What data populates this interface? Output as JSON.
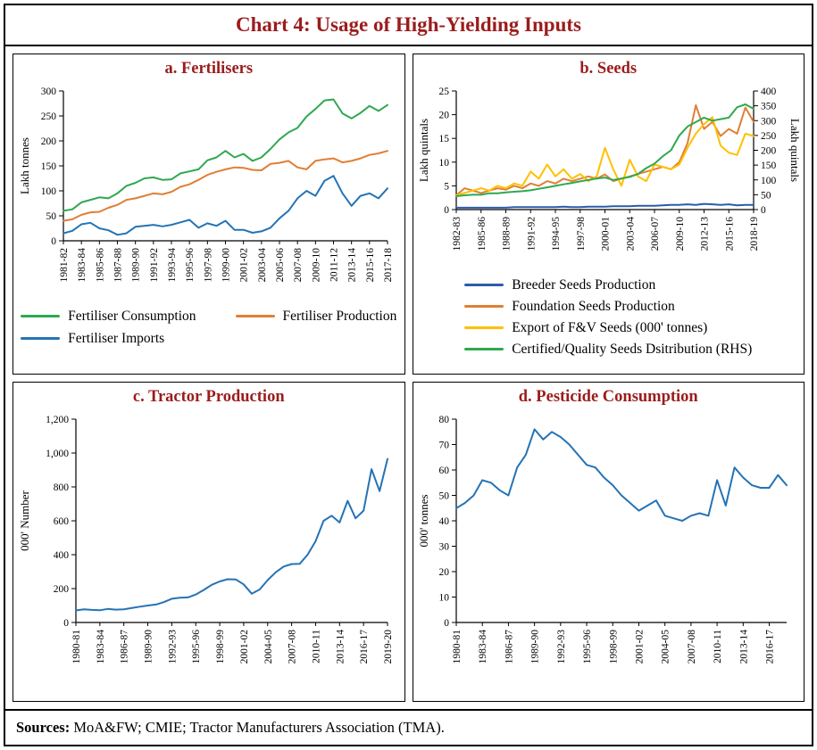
{
  "figure": {
    "title": "Chart 4: Usage of High-Yielding Inputs",
    "title_color": "#9b1c1c",
    "sources_label": "Sources:",
    "sources_text": " MoA&FW; CMIE; Tractor Manufacturers Association (TMA)."
  },
  "colors": {
    "green": "#2fa84f",
    "orange": "#e07f35",
    "blue": "#2473b5",
    "dark_blue": "#2a5caa",
    "yellow": "#ffc000",
    "title_maroon": "#9b1c1c"
  },
  "chart_data": [
    {
      "type": "line",
      "id": "fertilisers",
      "title": "a. Fertilisers",
      "ylabel": "Lakh tonnes",
      "ylim": [
        0,
        300
      ],
      "yticks": [
        0,
        50,
        100,
        150,
        200,
        250,
        300
      ],
      "ytick_labels": [
        "0",
        "50",
        "100",
        "150",
        "200",
        "250",
        "300"
      ],
      "xtick_step": 2,
      "xtick_labels": [
        "1981-82",
        "1983-84",
        "1985-86",
        "1987-88",
        "1989-90",
        "1991-92",
        "1993-94",
        "1995-96",
        "1997-98",
        "1999-00",
        "2001-02",
        "2003-04",
        "2005-06",
        "2007-08",
        "2009-10",
        "2011-12",
        "2013-14",
        "2015-16",
        "2017-18"
      ],
      "grid": false,
      "legend_position": "bottom",
      "series": [
        {
          "name": "Fertiliser Consumption",
          "color": "#2fa84f",
          "axis": "left",
          "values": [
            60,
            63,
            77,
            82,
            87,
            85,
            95,
            110,
            116,
            125,
            127,
            122,
            123,
            135,
            139,
            143,
            161,
            167,
            180,
            167,
            174,
            160,
            167,
            184,
            203,
            217,
            226,
            249,
            264,
            281,
            283,
            255,
            245,
            256,
            270,
            260,
            272
          ]
        },
        {
          "name": "Fertiliser Production",
          "color": "#e07f35",
          "axis": "left",
          "values": [
            40,
            43,
            52,
            57,
            58,
            66,
            72,
            82,
            85,
            90,
            95,
            93,
            98,
            108,
            113,
            122,
            132,
            138,
            143,
            147,
            146,
            142,
            141,
            154,
            156,
            160,
            147,
            143,
            160,
            163,
            165,
            157,
            160,
            165,
            172,
            175,
            180
          ]
        },
        {
          "name": "Fertiliser Imports",
          "color": "#2473b5",
          "axis": "left",
          "values": [
            15,
            20,
            33,
            36,
            25,
            21,
            12,
            15,
            28,
            30,
            32,
            29,
            32,
            37,
            42,
            26,
            35,
            30,
            40,
            22,
            22,
            16,
            19,
            26,
            45,
            60,
            85,
            100,
            90,
            120,
            130,
            95,
            70,
            90,
            95,
            85,
            105
          ]
        }
      ]
    },
    {
      "type": "line",
      "id": "seeds",
      "title": "b. Seeds",
      "ylabel": "Lakh quintals",
      "ylim": [
        0,
        25
      ],
      "yticks": [
        0,
        5,
        10,
        15,
        20,
        25
      ],
      "ytick_labels": [
        "0",
        "5",
        "10",
        "15",
        "20",
        "25"
      ],
      "right_axis": {
        "ylabel": "Lakh quintals",
        "ylim": [
          0,
          400
        ],
        "yticks": [
          0,
          50,
          100,
          150,
          200,
          250,
          300,
          350,
          400
        ],
        "ytick_labels": [
          "0",
          "50",
          "100",
          "150",
          "200",
          "250",
          "300",
          "350",
          "400"
        ]
      },
      "xtick_step": 3,
      "xtick_labels": [
        "1982-83",
        "1985-86",
        "1988-89",
        "1991-92",
        "1994-95",
        "1997-98",
        "2000-01",
        "2003-04",
        "2006-07",
        "2009-10",
        "2012-13",
        "2015-16",
        "2018-19"
      ],
      "grid": false,
      "legend_position": "bottom",
      "series": [
        {
          "name": "Breeder Seeds Production",
          "color": "#2a5caa",
          "axis": "left",
          "values": [
            0.4,
            0.4,
            0.4,
            0.4,
            0.4,
            0.4,
            0.4,
            0.5,
            0.5,
            0.5,
            0.5,
            0.5,
            0.5,
            0.6,
            0.5,
            0.5,
            0.6,
            0.6,
            0.6,
            0.7,
            0.7,
            0.7,
            0.8,
            0.8,
            0.8,
            0.9,
            1.0,
            1.0,
            1.1,
            1.0,
            1.2,
            1.1,
            1.0,
            1.1,
            0.9,
            1.0,
            1.0
          ]
        },
        {
          "name": "Foundation Seeds Production",
          "color": "#e07f35",
          "axis": "left",
          "values": [
            3.0,
            4.5,
            4.0,
            3.5,
            4.0,
            4.5,
            4.2,
            5.0,
            4.5,
            5.5,
            5.0,
            6.0,
            5.5,
            6.5,
            6.0,
            6.5,
            7.0,
            6.5,
            7.4,
            6.0,
            6.5,
            7.0,
            7.5,
            8.0,
            8.5,
            9.0,
            8.5,
            10.0,
            14.0,
            22.0,
            17.0,
            18.5,
            15.5,
            17.0,
            16.0,
            21.5,
            18.5
          ]
        },
        {
          "name": "Export of F&V Seeds (000' tonnes)",
          "color": "#ffc000",
          "axis": "left",
          "values": [
            3.0,
            3.5,
            4.0,
            4.5,
            4.0,
            5.0,
            4.5,
            5.5,
            5.0,
            8.0,
            6.5,
            9.5,
            7.0,
            8.5,
            6.5,
            7.5,
            6.0,
            7.0,
            13.0,
            8.5,
            5.0,
            10.5,
            7.0,
            6.0,
            9.5,
            9.0,
            8.5,
            9.5,
            13.0,
            16.0,
            18.0,
            19.5,
            13.5,
            12.0,
            11.5,
            16.0,
            15.5
          ]
        },
        {
          "name": "Certified/Quality Seeds Dsitribution (RHS)",
          "color": "#2fa84f",
          "axis": "right",
          "values": [
            45,
            48,
            50,
            50,
            55,
            55,
            58,
            60,
            62,
            65,
            70,
            75,
            80,
            85,
            90,
            95,
            100,
            105,
            108,
            100,
            105,
            110,
            120,
            140,
            155,
            180,
            200,
            250,
            280,
            295,
            310,
            300,
            305,
            310,
            345,
            355,
            340
          ]
        }
      ]
    },
    {
      "type": "line",
      "id": "tractor-production",
      "title": "c. Tractor Production",
      "ylabel": "000' Number",
      "ylim": [
        0,
        1200
      ],
      "yticks": [
        0,
        200,
        400,
        600,
        800,
        1000,
        1200
      ],
      "ytick_labels": [
        "0",
        "200",
        "400",
        "600",
        "800",
        "1,000",
        "1,200"
      ],
      "xtick_step": 3,
      "xtick_labels": [
        "1980-81",
        "1983-84",
        "1986-87",
        "1989-90",
        "1992-93",
        "1995-96",
        "1998-99",
        "2001-02",
        "2004-05",
        "2007-08",
        "2010-11",
        "2013-14",
        "2016-17",
        "2019-20"
      ],
      "grid": false,
      "legend_position": "none",
      "series": [
        {
          "name": "Tractor Production",
          "color": "#2473b5",
          "axis": "left",
          "values": [
            71,
            78,
            74,
            72,
            80,
            76,
            78,
            85,
            93,
            100,
            106,
            120,
            140,
            146,
            148,
            165,
            192,
            222,
            242,
            255,
            254,
            225,
            170,
            195,
            250,
            296,
            330,
            345,
            346,
            400,
            480,
            600,
            630,
            590,
            718,
            615,
            660,
            905,
            775,
            965
          ]
        }
      ]
    },
    {
      "type": "line",
      "id": "pesticide-consumption",
      "title": "d. Pesticide Consumption",
      "ylabel": "000' tonnes",
      "ylim": [
        0,
        80
      ],
      "yticks": [
        0,
        10,
        20,
        30,
        40,
        50,
        60,
        70,
        80
      ],
      "ytick_labels": [
        "0",
        "10",
        "20",
        "30",
        "40",
        "50",
        "60",
        "70",
        "80"
      ],
      "xtick_step": 3,
      "xtick_labels": [
        "1980-81",
        "1983-84",
        "1986-87",
        "1989-90",
        "1992-93",
        "1995-96",
        "1998-99",
        "2001-02",
        "2004-05",
        "2007-08",
        "2010-11",
        "2013-14",
        "2016-17"
      ],
      "grid": false,
      "legend_position": "none",
      "series": [
        {
          "name": "Pesticide Consumption",
          "color": "#2473b5",
          "axis": "left",
          "values": [
            45,
            47,
            50,
            56,
            55,
            52,
            50,
            61,
            66,
            76,
            72,
            75,
            73,
            70,
            66,
            62,
            61,
            57,
            54,
            50,
            47,
            44,
            46,
            48,
            42,
            41,
            40,
            42,
            43,
            42,
            56,
            46,
            61,
            57,
            54,
            53,
            53,
            58,
            54
          ]
        }
      ]
    }
  ]
}
